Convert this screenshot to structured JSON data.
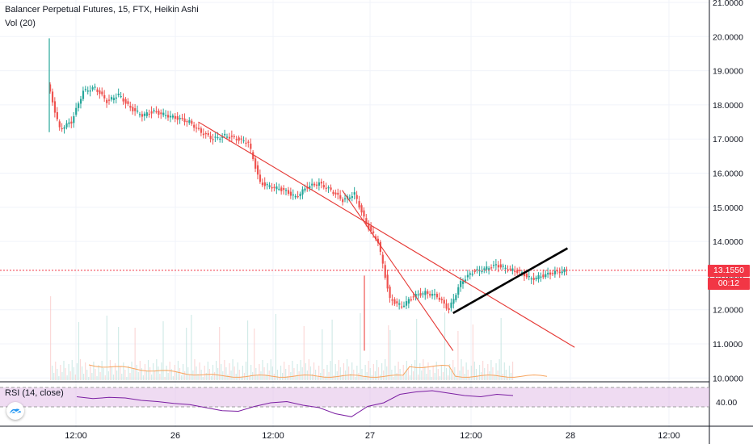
{
  "header": {
    "title": "Balancer Perpetual Futures, 15, FTX, Heikin Ashi",
    "indicator": "Vol (20)",
    "rsi_label": "RSI (14, close)"
  },
  "price_tag": {
    "value": "13.1550",
    "countdown": "00:12",
    "color": "#f23645"
  },
  "colors": {
    "up": "#26a69a",
    "down": "#ef5350",
    "trend": "#e53935",
    "support": "#000000",
    "volume_ma": "#f7a35c",
    "rsi": "#7b1fa2",
    "rsi_band": "#e1bee7"
  },
  "chart_data": {
    "type": "candlestick",
    "title": "Balancer Perpetual Futures, 15, FTX, Heikin Ashi",
    "x_ticks": [
      "12:00",
      "26",
      "12:00",
      "27",
      "12:00",
      "28",
      "12:00"
    ],
    "y_ticks": [
      "21.0000",
      "20.0000",
      "19.0000",
      "18.0000",
      "17.0000",
      "16.0000",
      "15.0000",
      "14.0000",
      "13.0000",
      "12.0000",
      "11.0000",
      "10.0000"
    ],
    "ylim": [
      10,
      21
    ],
    "current_price": 13.155,
    "price_path": [
      [
        0,
        18.6
      ],
      [
        1,
        17.3
      ],
      [
        2,
        17.5
      ],
      [
        3,
        18.4
      ],
      [
        4,
        18.5
      ],
      [
        5,
        18.1
      ],
      [
        6,
        18.3
      ],
      [
        7,
        17.9
      ],
      [
        8,
        17.7
      ],
      [
        9,
        17.8
      ],
      [
        10,
        17.7
      ],
      [
        11,
        17.6
      ],
      [
        12,
        17.5
      ],
      [
        13,
        17.2
      ],
      [
        14,
        17.0
      ],
      [
        15,
        17.1
      ],
      [
        16,
        17.0
      ],
      [
        17,
        16.9
      ],
      [
        18,
        15.7
      ],
      [
        19,
        15.6
      ],
      [
        20,
        15.5
      ],
      [
        21,
        15.3
      ],
      [
        22,
        15.6
      ],
      [
        23,
        15.7
      ],
      [
        24,
        15.5
      ],
      [
        25,
        15.2
      ],
      [
        26,
        15.4
      ],
      [
        27,
        14.5
      ],
      [
        28,
        14.0
      ],
      [
        29,
        12.3
      ],
      [
        30,
        12.1
      ],
      [
        31,
        12.4
      ],
      [
        32,
        12.5
      ],
      [
        33,
        12.4
      ],
      [
        34,
        12.0
      ],
      [
        35,
        12.8
      ],
      [
        36,
        13.1
      ],
      [
        37,
        13.2
      ],
      [
        38,
        13.3
      ],
      [
        39,
        13.2
      ],
      [
        40,
        13.1
      ],
      [
        41,
        12.9
      ],
      [
        42,
        13.0
      ],
      [
        43,
        13.1
      ],
      [
        44,
        13.15
      ]
    ],
    "trendlines": [
      {
        "from": [
          12.7,
          17.5
        ],
        "to": [
          44.6,
          10.9
        ],
        "kind": "resistance"
      },
      {
        "from": [
          24.9,
          15.5
        ],
        "to": [
          34.3,
          10.8
        ],
        "kind": "resistance"
      },
      {
        "from": [
          34.3,
          11.9
        ],
        "to": [
          44.0,
          13.8
        ],
        "kind": "support"
      }
    ],
    "rsi": {
      "label": "RSI (14, close)",
      "y_tick": "40.00",
      "values": [
        58,
        55,
        57,
        56,
        52,
        50,
        47,
        45,
        40,
        35,
        34,
        42,
        48,
        50,
        44,
        40,
        30,
        25,
        42,
        48,
        62,
        66,
        68,
        64,
        60,
        58,
        62,
        60
      ]
    }
  }
}
